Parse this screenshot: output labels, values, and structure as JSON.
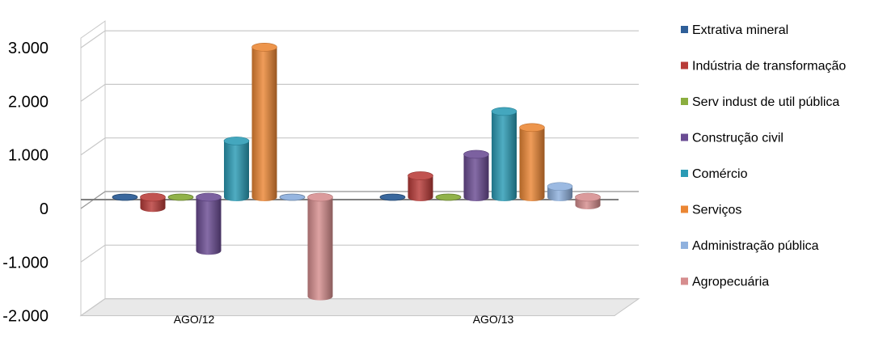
{
  "chart_data": {
    "type": "bar",
    "categories": [
      "AGO/12",
      "AGO/13"
    ],
    "series": [
      {
        "name": "Extrativa mineral",
        "values": [
          0,
          0
        ]
      },
      {
        "name": "Indústria de transformação",
        "values": [
          -200,
          400
        ]
      },
      {
        "name": "Serv indust de util pública",
        "values": [
          0,
          0
        ]
      },
      {
        "name": "Construção civil",
        "values": [
          -1000,
          800
        ]
      },
      {
        "name": "Comércio",
        "values": [
          1050,
          1600
        ]
      },
      {
        "name": "Serviços",
        "values": [
          2800,
          1300
        ]
      },
      {
        "name": "Administração pública",
        "values": [
          0,
          200
        ]
      },
      {
        "name": "Agropecuária",
        "values": [
          -1850,
          -150
        ]
      }
    ],
    "yticks": [
      "3.000",
      "2.000",
      "1.000",
      "0",
      "-1.000",
      "-2.000"
    ],
    "ylim": [
      -2000,
      3000
    ],
    "legend_position": "right",
    "grid": true,
    "colors": [
      "#2F5F98",
      "#B83B38",
      "#8BAE3F",
      "#6A4C93",
      "#2A9BB5",
      "#EB8634",
      "#8FB1DE",
      "#D68D8E"
    ],
    "perspective": "3d"
  }
}
